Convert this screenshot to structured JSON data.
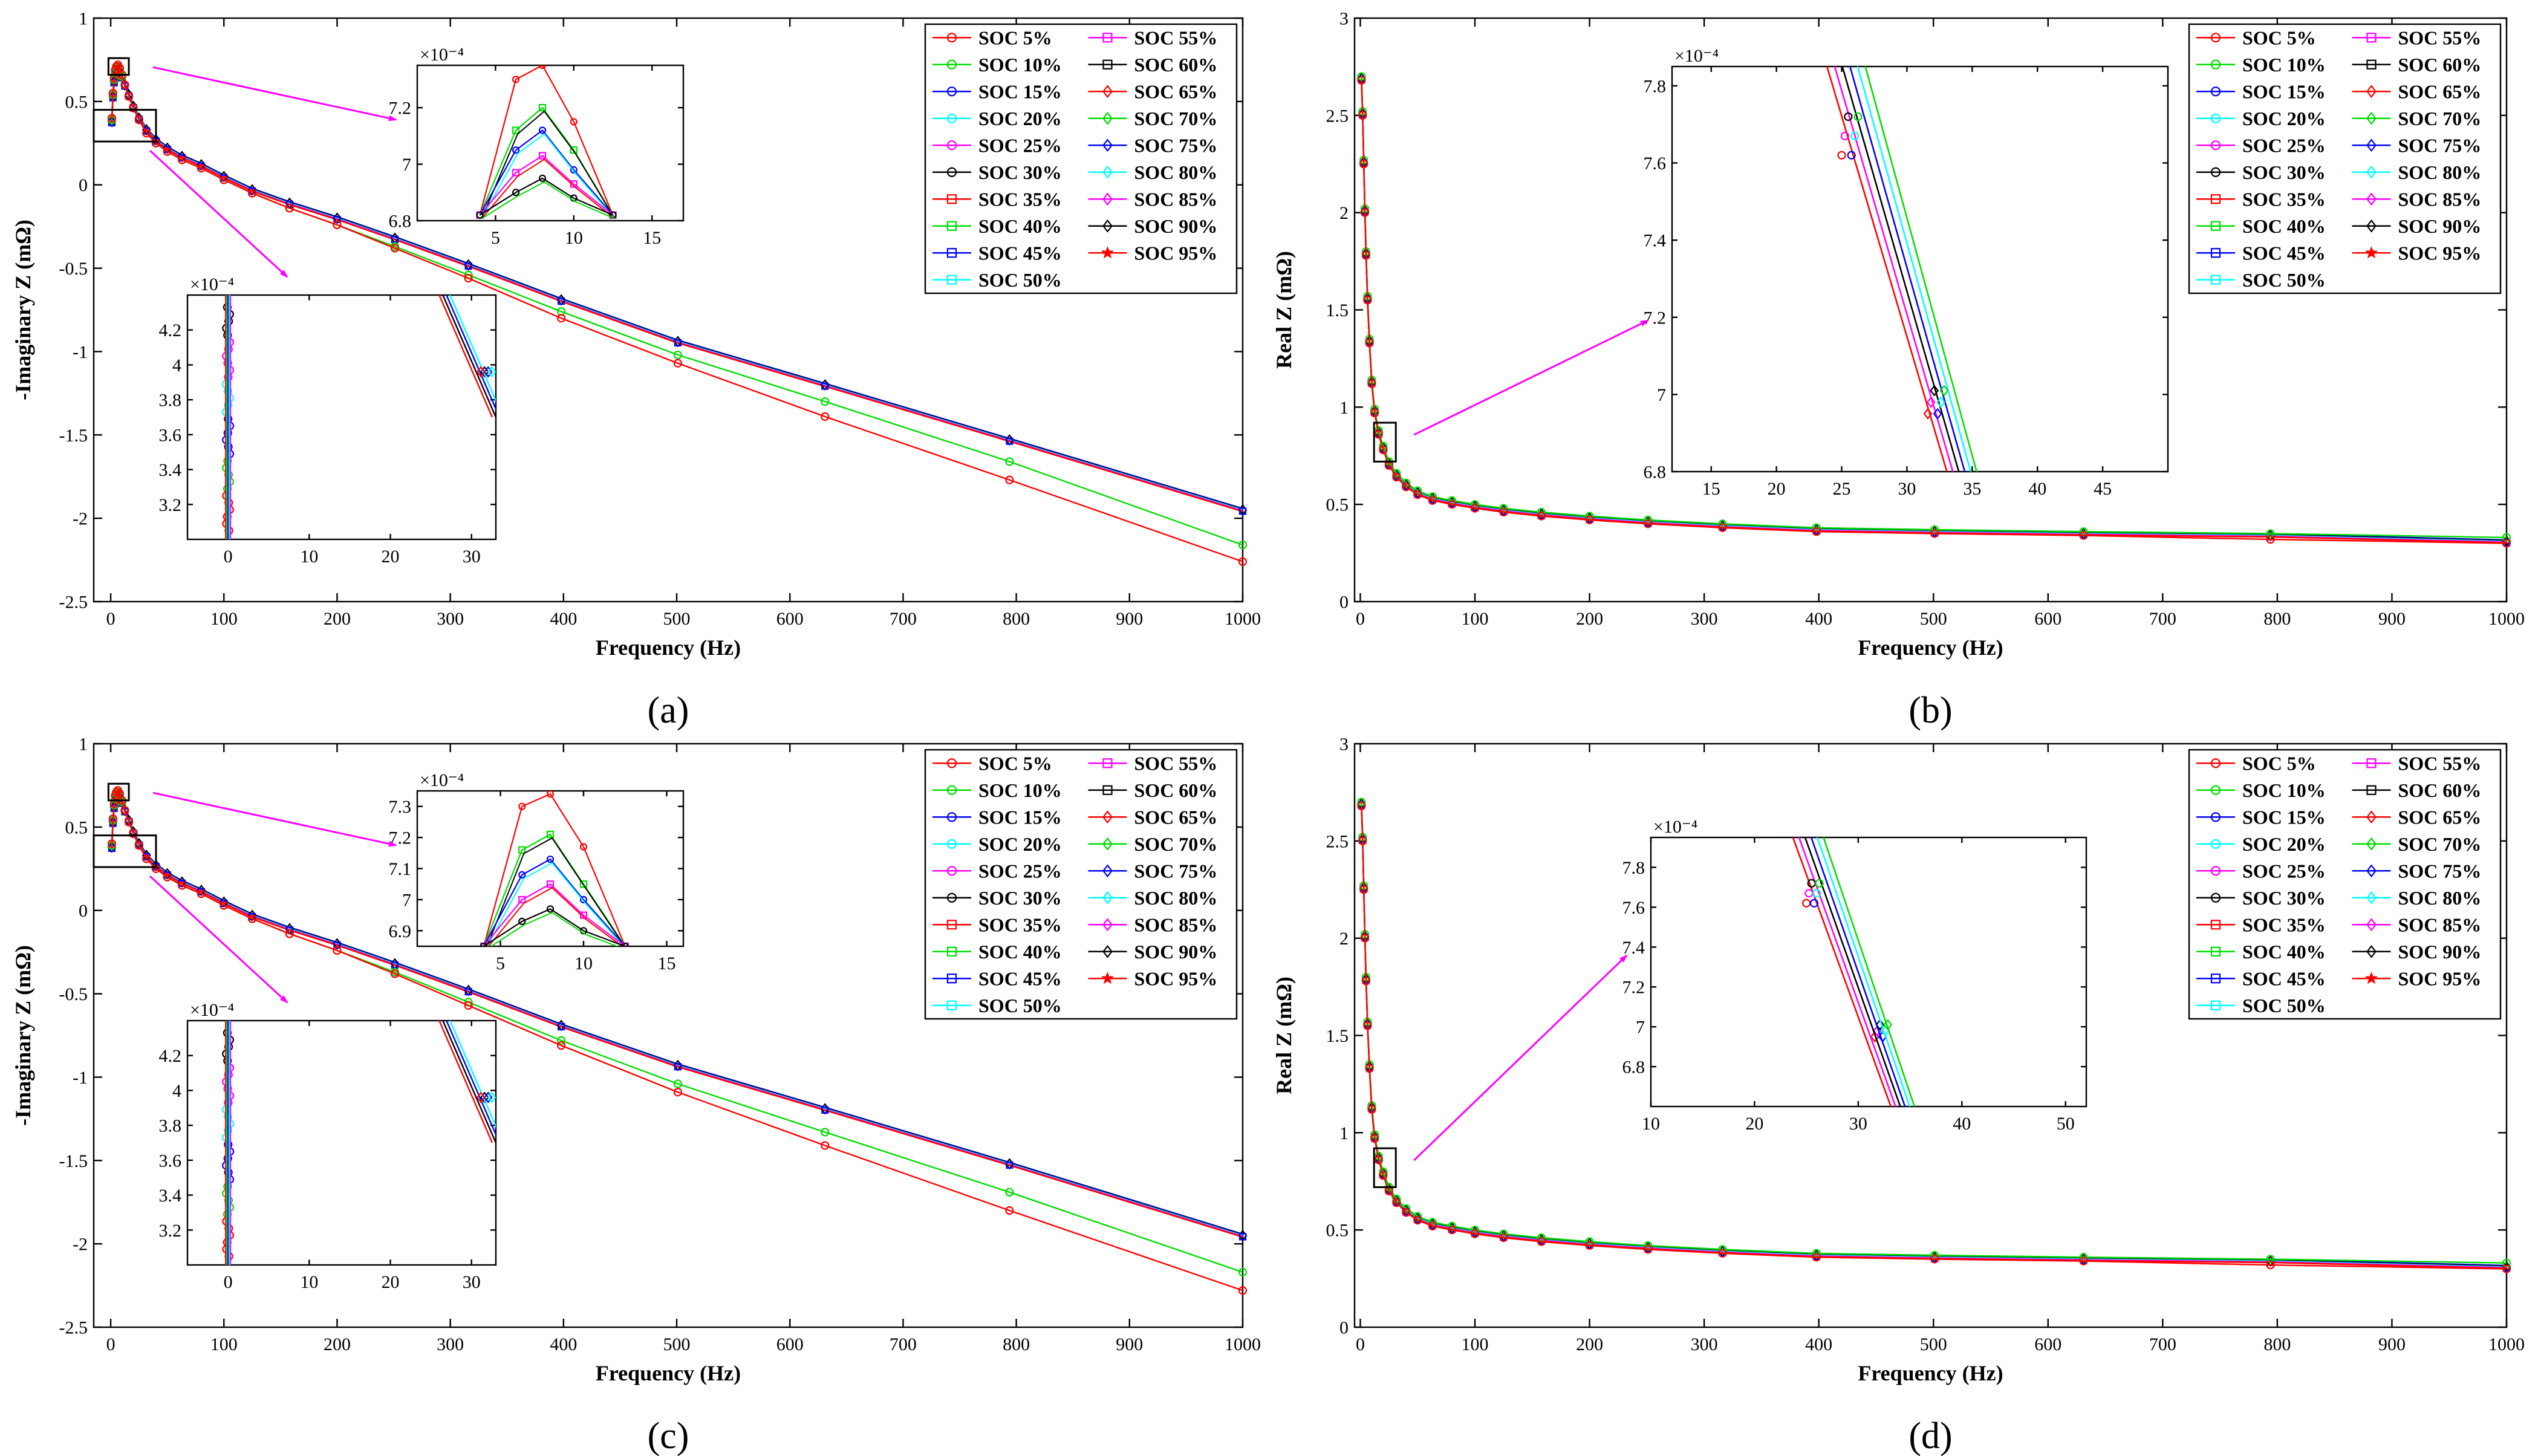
{
  "series": [
    {
      "name": "SOC 5%",
      "color": "#ff0000",
      "marker": "circle"
    },
    {
      "name": "SOC 10%",
      "color": "#00dd00",
      "marker": "circle"
    },
    {
      "name": "SOC 15%",
      "color": "#0000ff",
      "marker": "circle"
    },
    {
      "name": "SOC 20%",
      "color": "#00ffff",
      "marker": "circle"
    },
    {
      "name": "SOC 25%",
      "color": "#ff00ff",
      "marker": "circle"
    },
    {
      "name": "SOC 30%",
      "color": "#000000",
      "marker": "circle"
    },
    {
      "name": "SOC 35%",
      "color": "#ff0000",
      "marker": "square"
    },
    {
      "name": "SOC 40%",
      "color": "#00dd00",
      "marker": "square"
    },
    {
      "name": "SOC 45%",
      "color": "#0000ff",
      "marker": "square"
    },
    {
      "name": "SOC 50%",
      "color": "#00ffff",
      "marker": "square"
    },
    {
      "name": "SOC 55%",
      "color": "#ff00ff",
      "marker": "square"
    },
    {
      "name": "SOC 60%",
      "color": "#000000",
      "marker": "square"
    },
    {
      "name": "SOC 65%",
      "color": "#ff0000",
      "marker": "diamond"
    },
    {
      "name": "SOC 70%",
      "color": "#00dd00",
      "marker": "diamond"
    },
    {
      "name": "SOC 75%",
      "color": "#0000ff",
      "marker": "diamond"
    },
    {
      "name": "SOC 80%",
      "color": "#00ffff",
      "marker": "diamond"
    },
    {
      "name": "SOC 85%",
      "color": "#ff00ff",
      "marker": "diamond"
    },
    {
      "name": "SOC 90%",
      "color": "#000000",
      "marker": "diamond"
    },
    {
      "name": "SOC 95%",
      "color": "#ff0000",
      "marker": "star"
    }
  ],
  "chart_data": [
    {
      "panel": "a",
      "caption": "(a)",
      "type": "line",
      "xlabel": "Frequency (Hz)",
      "ylabel": "-Imaginary Z (mΩ)",
      "xlim": [
        -15,
        1000
      ],
      "ylim": [
        -2.5,
        1
      ],
      "xticks": [
        0,
        100,
        200,
        300,
        400,
        500,
        600,
        700,
        800,
        900,
        1000
      ],
      "yticks": [
        -2.5,
        -2,
        -1.5,
        -1,
        -0.5,
        0,
        0.5,
        1
      ],
      "x": [
        1,
        2,
        3,
        4,
        5,
        6.3,
        8,
        10,
        12.5,
        16,
        20,
        25,
        31.6,
        40,
        50,
        63,
        80,
        100,
        125,
        158,
        200,
        251,
        316,
        398,
        501,
        631,
        794,
        1000
      ],
      "curves": [
        {
          "group": "SOC 5%",
          "y": [
            0.4,
            0.55,
            0.64,
            0.69,
            0.71,
            0.72,
            0.7,
            0.66,
            0.6,
            0.53,
            0.46,
            0.39,
            0.31,
            0.25,
            0.2,
            0.15,
            0.1,
            0.03,
            -0.05,
            -0.14,
            -0.24,
            -0.38,
            -0.56,
            -0.8,
            -1.07,
            -1.39,
            -1.77,
            -2.26
          ]
        },
        {
          "group": "SOC 10%",
          "y": [
            0.39,
            0.54,
            0.63,
            0.68,
            0.7,
            0.71,
            0.69,
            0.65,
            0.6,
            0.53,
            0.46,
            0.39,
            0.31,
            0.25,
            0.2,
            0.15,
            0.1,
            0.03,
            -0.05,
            -0.14,
            -0.24,
            -0.37,
            -0.54,
            -0.76,
            -1.02,
            -1.3,
            -1.66,
            -2.16
          ]
        },
        {
          "group": "SOC 15-95%",
          "y": [
            0.38,
            0.53,
            0.62,
            0.67,
            0.69,
            0.7,
            0.68,
            0.65,
            0.6,
            0.54,
            0.47,
            0.4,
            0.33,
            0.27,
            0.22,
            0.17,
            0.12,
            0.05,
            -0.03,
            -0.11,
            -0.2,
            -0.32,
            -0.48,
            -0.69,
            -0.94,
            -1.2,
            -1.53,
            -1.95
          ]
        }
      ],
      "inset_peak": {
        "exponent": "×10⁻⁴",
        "xlim": [
          0,
          17
        ],
        "ylim": [
          6.8,
          7.35
        ],
        "xticks": [
          5,
          10,
          15
        ],
        "yticks": [
          6.8,
          7,
          7.2
        ],
        "x": [
          4,
          6.3,
          8,
          10,
          12.5
        ],
        "lines": [
          [
            6.82,
            7.3,
            7.35,
            7.15,
            6.82
          ],
          [
            6.82,
            7.12,
            7.2,
            7.05,
            6.82
          ],
          [
            6.82,
            7.05,
            7.12,
            6.98,
            6.82
          ],
          [
            6.82,
            6.97,
            7.03,
            6.93,
            6.82
          ],
          [
            6.82,
            6.9,
            6.95,
            6.88,
            6.82
          ]
        ]
      },
      "inset_low": {
        "exponent": "×10⁻⁴",
        "xlim": [
          -5,
          33
        ],
        "ylim": [
          3,
          4.4
        ],
        "xticks": [
          0,
          10,
          20,
          30
        ],
        "yticks": [
          3.2,
          3.4,
          3.6,
          3.8,
          4,
          4.2
        ]
      }
    },
    {
      "panel": "b",
      "caption": "(b)",
      "type": "line",
      "xlabel": "Frequency (Hz)",
      "ylabel": "Real Z (mΩ)",
      "xlim": [
        -5,
        1000
      ],
      "ylim": [
        0,
        3
      ],
      "xticks": [
        0,
        100,
        200,
        300,
        400,
        500,
        600,
        700,
        800,
        900,
        1000
      ],
      "yticks": [
        0,
        0.5,
        1,
        1.5,
        2,
        2.5,
        3
      ],
      "x": [
        1,
        2,
        3,
        4,
        5,
        6.3,
        8,
        10,
        12.5,
        16,
        20,
        25,
        31.6,
        40,
        50,
        63,
        80,
        100,
        125,
        158,
        200,
        251,
        316,
        398,
        501,
        631,
        794,
        1000
      ],
      "curves": [
        {
          "group": "SOC 5%",
          "y": [
            2.68,
            2.5,
            2.25,
            2.0,
            1.78,
            1.55,
            1.33,
            1.12,
            0.97,
            0.86,
            0.78,
            0.7,
            0.64,
            0.59,
            0.55,
            0.52,
            0.5,
            0.48,
            0.46,
            0.44,
            0.42,
            0.4,
            0.38,
            0.36,
            0.35,
            0.34,
            0.32,
            0.3
          ]
        },
        {
          "group": "SOC 10%",
          "y": [
            2.7,
            2.52,
            2.27,
            2.02,
            1.8,
            1.57,
            1.35,
            1.14,
            0.99,
            0.88,
            0.8,
            0.72,
            0.66,
            0.61,
            0.57,
            0.54,
            0.52,
            0.5,
            0.48,
            0.46,
            0.44,
            0.42,
            0.4,
            0.38,
            0.37,
            0.36,
            0.35,
            0.33
          ]
        },
        {
          "group": "SOC 15-95%",
          "y": [
            2.69,
            2.51,
            2.26,
            2.01,
            1.79,
            1.56,
            1.34,
            1.13,
            0.98,
            0.87,
            0.79,
            0.71,
            0.65,
            0.6,
            0.56,
            0.53,
            0.51,
            0.49,
            0.47,
            0.45,
            0.43,
            0.41,
            0.39,
            0.37,
            0.36,
            0.35,
            0.34,
            0.31
          ]
        }
      ],
      "inset": {
        "exponent": "×10⁻⁴",
        "xlim": [
          12,
          50
        ],
        "ylim": [
          6.8,
          7.85
        ],
        "xticks": [
          15,
          20,
          25,
          30,
          35,
          40,
          45
        ],
        "yticks": [
          6.8,
          7,
          7.2,
          7.4,
          7.6,
          7.8
        ]
      }
    },
    {
      "panel": "c",
      "caption": "(c)",
      "type": "line",
      "xlabel": "Frequency (Hz)",
      "ylabel": "-Imaginary Z (mΩ)",
      "xlim": [
        -15,
        1000
      ],
      "ylim": [
        -2.5,
        1
      ],
      "xticks": [
        0,
        100,
        200,
        300,
        400,
        500,
        600,
        700,
        800,
        900,
        1000
      ],
      "yticks": [
        -2.5,
        -2,
        -1.5,
        -1,
        -0.5,
        0,
        0.5,
        1
      ],
      "x": [
        1,
        2,
        3,
        4,
        5,
        6.3,
        8,
        10,
        12.5,
        16,
        20,
        25,
        31.6,
        40,
        50,
        63,
        80,
        100,
        125,
        158,
        200,
        251,
        316,
        398,
        501,
        631,
        794,
        1000
      ],
      "curves": [
        {
          "group": "SOC 5%",
          "y": [
            0.4,
            0.55,
            0.64,
            0.69,
            0.71,
            0.72,
            0.7,
            0.66,
            0.6,
            0.53,
            0.46,
            0.39,
            0.31,
            0.25,
            0.2,
            0.15,
            0.1,
            0.03,
            -0.05,
            -0.14,
            -0.24,
            -0.38,
            -0.57,
            -0.81,
            -1.09,
            -1.41,
            -1.8,
            -2.28
          ]
        },
        {
          "group": "SOC 10%",
          "y": [
            0.39,
            0.54,
            0.63,
            0.68,
            0.7,
            0.71,
            0.69,
            0.65,
            0.6,
            0.53,
            0.46,
            0.39,
            0.31,
            0.25,
            0.2,
            0.15,
            0.1,
            0.03,
            -0.05,
            -0.14,
            -0.24,
            -0.37,
            -0.55,
            -0.78,
            -1.04,
            -1.33,
            -1.69,
            -2.17
          ]
        },
        {
          "group": "SOC 15-95%",
          "y": [
            0.38,
            0.53,
            0.62,
            0.67,
            0.69,
            0.7,
            0.68,
            0.65,
            0.6,
            0.54,
            0.47,
            0.4,
            0.33,
            0.27,
            0.22,
            0.17,
            0.12,
            0.05,
            -0.03,
            -0.11,
            -0.2,
            -0.32,
            -0.48,
            -0.69,
            -0.93,
            -1.19,
            -1.52,
            -1.95
          ]
        }
      ],
      "inset_peak": {
        "exponent": "×10⁻⁴",
        "xlim": [
          0,
          16
        ],
        "ylim": [
          6.85,
          7.35
        ],
        "xticks": [
          5,
          10,
          15
        ],
        "yticks": [
          6.9,
          7,
          7.1,
          7.2,
          7.3
        ],
        "x": [
          4,
          6.3,
          8,
          10,
          12.5
        ],
        "lines": [
          [
            6.85,
            7.3,
            7.34,
            7.17,
            6.85
          ],
          [
            6.85,
            7.16,
            7.21,
            7.05,
            6.85
          ],
          [
            6.85,
            7.08,
            7.13,
            7.0,
            6.85
          ],
          [
            6.85,
            7.0,
            7.05,
            6.95,
            6.85
          ],
          [
            6.85,
            6.93,
            6.97,
            6.9,
            6.85
          ]
        ]
      },
      "inset_low": {
        "exponent": "×10⁻⁴",
        "xlim": [
          -5,
          33
        ],
        "ylim": [
          3,
          4.4
        ],
        "xticks": [
          0,
          10,
          20,
          30
        ],
        "yticks": [
          3.2,
          3.4,
          3.6,
          3.8,
          4,
          4.2
        ]
      }
    },
    {
      "panel": "d",
      "caption": "(d)",
      "type": "line",
      "xlabel": "Frequency (Hz)",
      "ylabel": "Real Z (mΩ)",
      "xlim": [
        -5,
        1000
      ],
      "ylim": [
        0,
        3
      ],
      "xticks": [
        0,
        100,
        200,
        300,
        400,
        500,
        600,
        700,
        800,
        900,
        1000
      ],
      "yticks": [
        0,
        0.5,
        1,
        1.5,
        2,
        2.5,
        3
      ],
      "x": [
        1,
        2,
        3,
        4,
        5,
        6.3,
        8,
        10,
        12.5,
        16,
        20,
        25,
        31.6,
        40,
        50,
        63,
        80,
        100,
        125,
        158,
        200,
        251,
        316,
        398,
        501,
        631,
        794,
        1000
      ],
      "curves": [
        {
          "group": "SOC 5%",
          "y": [
            2.68,
            2.5,
            2.25,
            2.0,
            1.78,
            1.55,
            1.33,
            1.12,
            0.97,
            0.86,
            0.78,
            0.7,
            0.64,
            0.59,
            0.55,
            0.52,
            0.5,
            0.48,
            0.46,
            0.44,
            0.42,
            0.4,
            0.38,
            0.36,
            0.35,
            0.34,
            0.32,
            0.3
          ]
        },
        {
          "group": "SOC 10%",
          "y": [
            2.7,
            2.52,
            2.27,
            2.02,
            1.8,
            1.57,
            1.35,
            1.14,
            0.99,
            0.88,
            0.8,
            0.72,
            0.66,
            0.61,
            0.57,
            0.54,
            0.52,
            0.5,
            0.48,
            0.46,
            0.44,
            0.42,
            0.4,
            0.38,
            0.37,
            0.36,
            0.35,
            0.33
          ]
        },
        {
          "group": "SOC 15-95%",
          "y": [
            2.69,
            2.51,
            2.26,
            2.01,
            1.79,
            1.56,
            1.34,
            1.13,
            0.98,
            0.87,
            0.79,
            0.71,
            0.65,
            0.6,
            0.56,
            0.53,
            0.51,
            0.49,
            0.47,
            0.45,
            0.43,
            0.41,
            0.39,
            0.37,
            0.36,
            0.35,
            0.34,
            0.31
          ]
        }
      ],
      "inset": {
        "exponent": "×10⁻⁴",
        "xlim": [
          10,
          52
        ],
        "ylim": [
          6.6,
          7.95
        ],
        "xticks": [
          10,
          20,
          30,
          40,
          50
        ],
        "yticks": [
          6.8,
          7,
          7.2,
          7.4,
          7.6,
          7.8
        ]
      }
    }
  ]
}
